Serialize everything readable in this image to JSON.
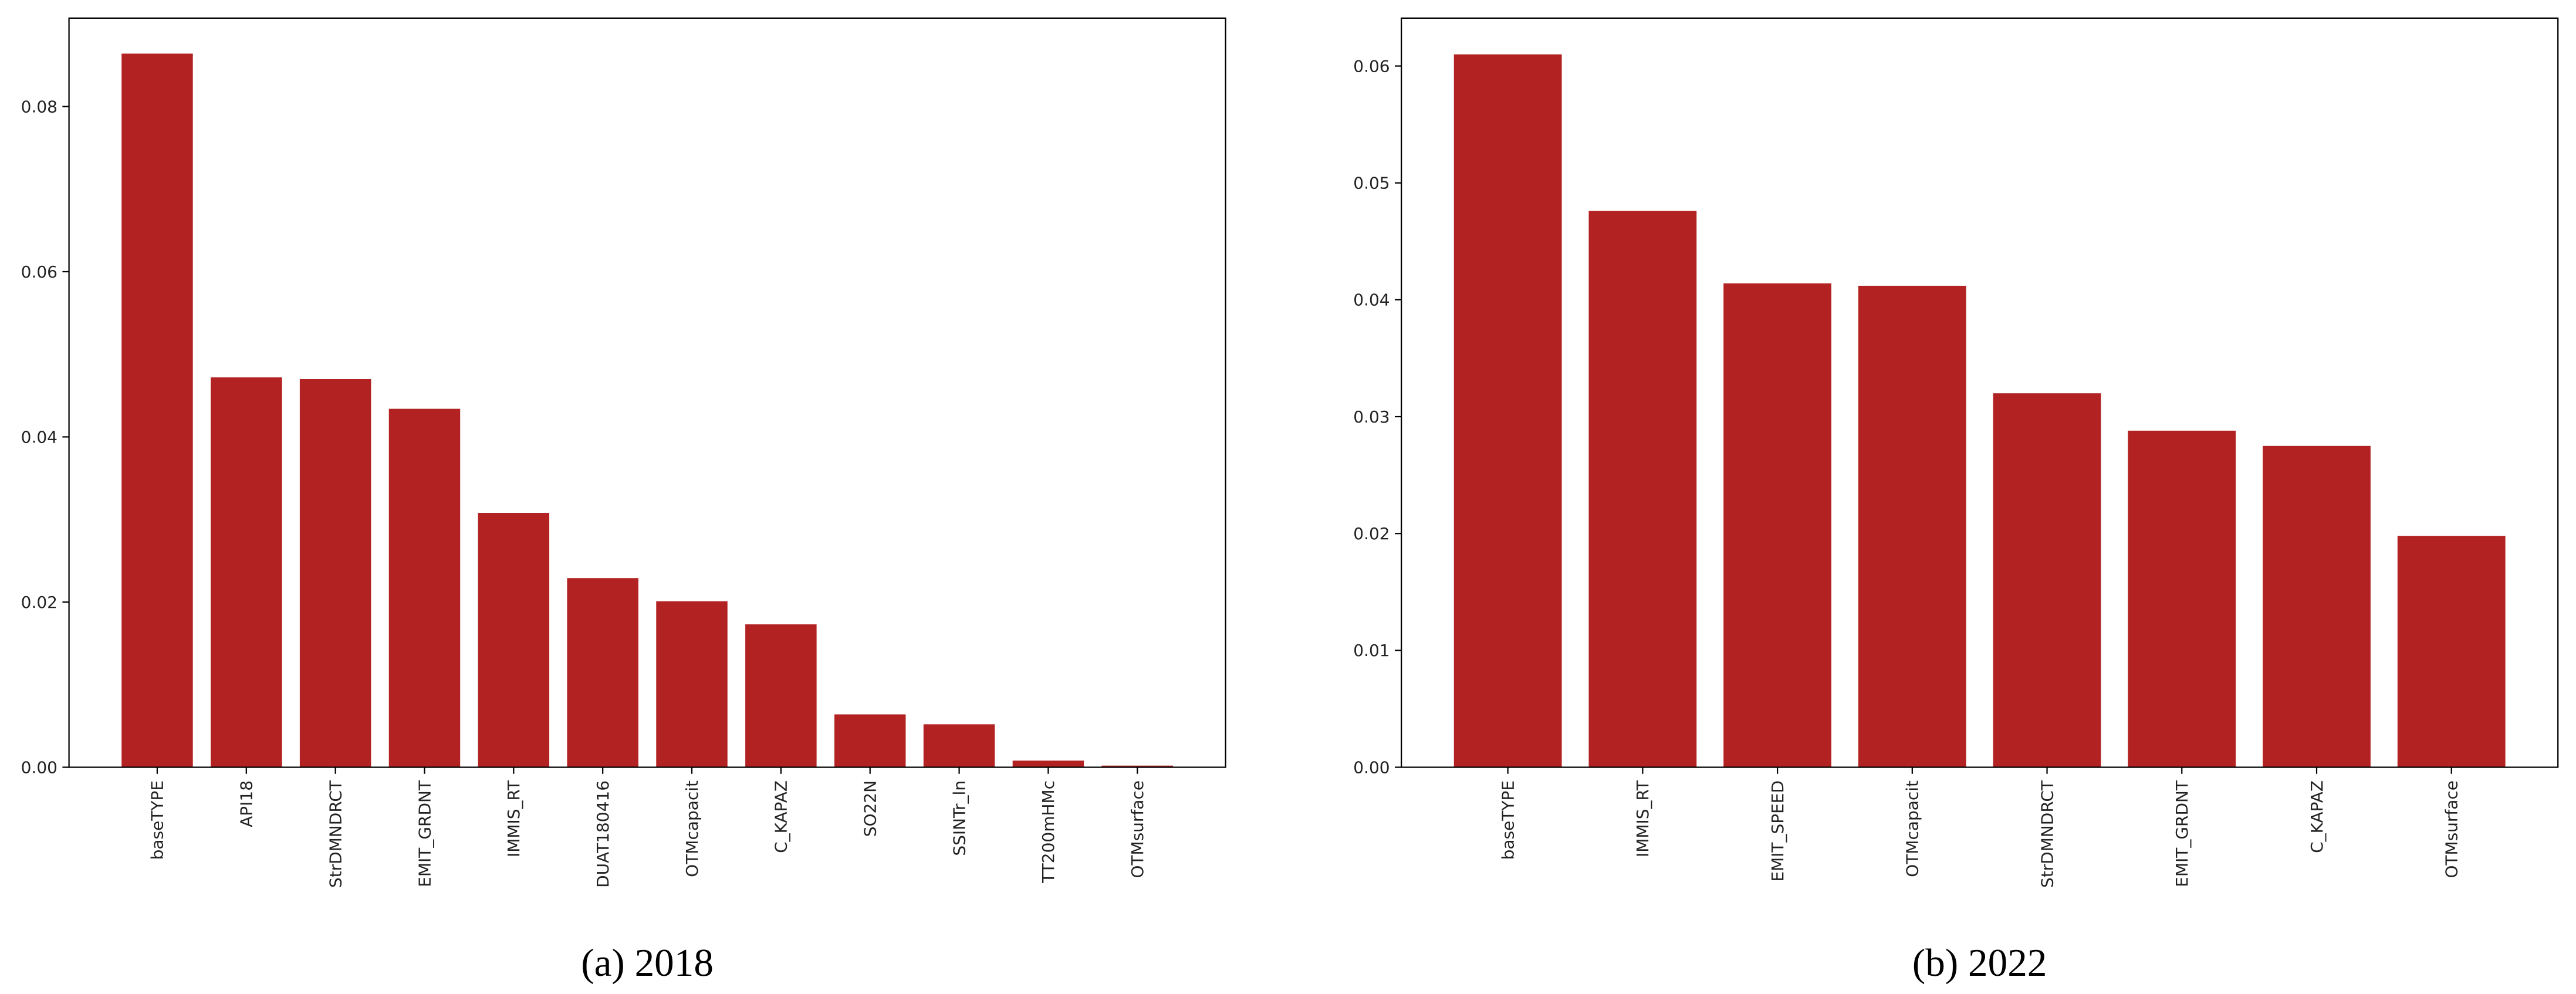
{
  "chart_data": [
    {
      "type": "bar",
      "caption": "(a) 2018",
      "color": "#b22222",
      "categories": [
        "baseTYPE",
        "API18",
        "StrDMNDRCT",
        "EMIT_GRDNT",
        "IMMIS_RT",
        "DUAT180416",
        "OTMcapacit",
        "C_KAPAZ",
        "SO22N",
        "SSINTr_ln",
        "TT200mHMc",
        "OTMsurface"
      ],
      "values": [
        0.0864,
        0.0472,
        0.047,
        0.0434,
        0.0308,
        0.0229,
        0.0201,
        0.0173,
        0.0064,
        0.0052,
        0.0008,
        0.0002
      ],
      "ylim": [
        0,
        0.0907
      ],
      "yticks": [
        {
          "value": 0,
          "label": "0.00"
        },
        {
          "value": 0.02,
          "label": "0.02"
        },
        {
          "value": 0.04,
          "label": "0.04"
        },
        {
          "value": 0.06,
          "label": "0.06"
        },
        {
          "value": 0.08,
          "label": "0.08"
        }
      ]
    },
    {
      "type": "bar",
      "caption": "(b) 2022",
      "color": "#b22222",
      "categories": [
        "baseTYPE",
        "IMMIS_RT",
        "EMIT_SPEED",
        "OTMcapacit",
        "StrDMNDRCT",
        "EMIT_GRDNT",
        "C_KAPAZ",
        "OTMsurface"
      ],
      "values": [
        0.061,
        0.0476,
        0.0414,
        0.0412,
        0.032,
        0.0288,
        0.0275,
        0.0198
      ],
      "ylim": [
        0,
        0.0641
      ],
      "yticks": [
        {
          "value": 0,
          "label": "0.00"
        },
        {
          "value": 0.01,
          "label": "0.01"
        },
        {
          "value": 0.02,
          "label": "0.02"
        },
        {
          "value": 0.03,
          "label": "0.03"
        },
        {
          "value": 0.04,
          "label": "0.04"
        },
        {
          "value": 0.05,
          "label": "0.05"
        },
        {
          "value": 0.06,
          "label": "0.06"
        }
      ]
    }
  ]
}
